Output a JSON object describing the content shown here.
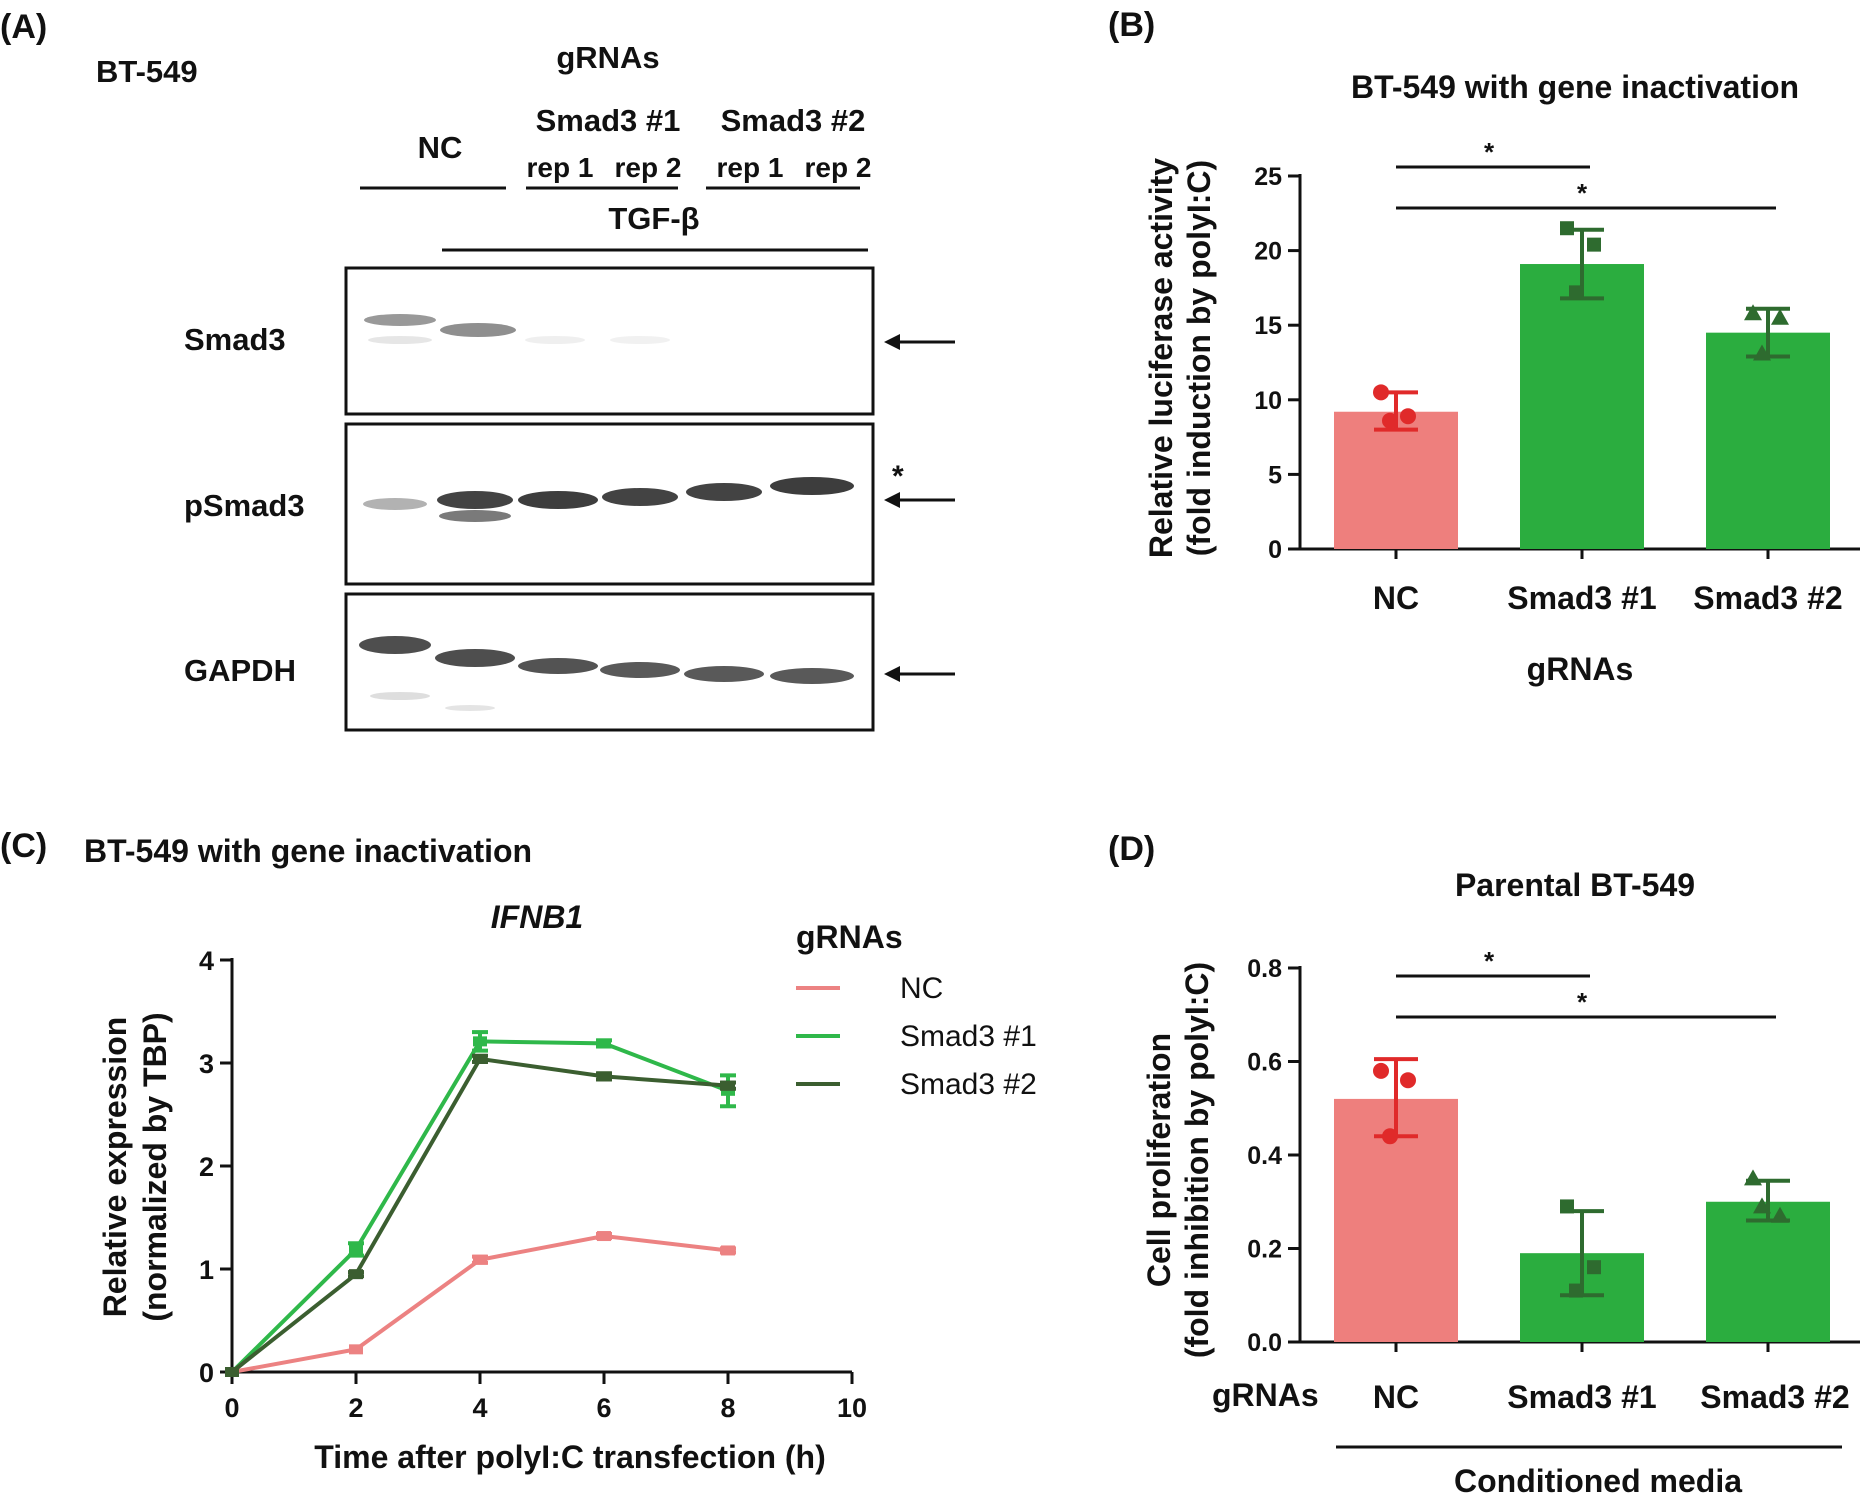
{
  "panels": {
    "A": {
      "label": "(A)",
      "cell_line": "BT-549",
      "grnas_header": "gRNAs",
      "groups": [
        "NC",
        "Smad3 #1",
        "Smad3 #2"
      ],
      "reps": [
        "rep 1",
        "rep 2",
        "rep 1",
        "rep 2"
      ],
      "treatment": "TGF-β",
      "blot_rows": [
        "Smad3",
        "pSmad3",
        "GAPDH"
      ],
      "star": "*"
    },
    "B": {
      "label": "(B)"
    },
    "C": {
      "label": "(C)",
      "title": "BT-549 with gene inactivation"
    },
    "D": {
      "label": "(D)",
      "group_label": "gRNAs",
      "media_label": "Conditioned media"
    }
  },
  "chart_data": [
    {
      "panel": "B",
      "type": "bar",
      "title": "BT-549 with gene inactivation",
      "xlabel": "gRNAs",
      "ylabel": [
        "Relative luciferase activity",
        "(fold induction by polyI:C)"
      ],
      "categories": [
        "NC",
        "Smad3 #1",
        "Smad3 #2"
      ],
      "values": [
        9.2,
        19.1,
        14.5
      ],
      "error": [
        [
          8.0,
          10.5
        ],
        [
          16.8,
          21.4
        ],
        [
          12.9,
          16.1
        ]
      ],
      "points": [
        [
          10.5,
          8.9,
          8.6
        ],
        [
          21.5,
          20.4,
          17.2
        ],
        [
          15.8,
          15.5,
          13.1
        ]
      ],
      "colors": [
        "#ee7f7d",
        "#2bad3f",
        "#2bad3f"
      ],
      "ylim": [
        0,
        25
      ],
      "yticks": [
        "0",
        "5",
        "10",
        "15",
        "20",
        "25"
      ],
      "significance": [
        {
          "from": 0,
          "to": 1,
          "label": "*"
        },
        {
          "from": 0,
          "to": 2,
          "label": "*"
        }
      ]
    },
    {
      "panel": "C",
      "type": "line",
      "title": "IFNB1",
      "xlabel": "Time after polyI:C transfection (h)",
      "ylabel": [
        "Relative expression",
        "(normalized by TBP)"
      ],
      "legend_title": "gRNAs",
      "x": [
        0,
        2,
        4,
        6,
        8
      ],
      "xlim": [
        0,
        10
      ],
      "ylim": [
        0,
        4
      ],
      "xticks": [
        "0",
        "2",
        "4",
        "6",
        "8",
        "10"
      ],
      "yticks": [
        "0",
        "1",
        "2",
        "3",
        "4"
      ],
      "series": [
        {
          "name": "NC",
          "values": [
            0,
            0.22,
            1.09,
            1.32,
            1.18
          ],
          "err": [
            0,
            0,
            0.03,
            0.02,
            0.02
          ],
          "color": "#ec8282"
        },
        {
          "name": "Smad3 #1",
          "values": [
            0,
            1.19,
            3.21,
            3.19,
            2.73
          ],
          "err": [
            0,
            0.06,
            0.09,
            0.03,
            0.15
          ],
          "color": "#2fb84a"
        },
        {
          "name": "Smad3 #2",
          "values": [
            0,
            0.95,
            3.04,
            2.87,
            2.78
          ],
          "err": [
            0,
            0.02,
            0.03,
            0.03,
            0.03
          ],
          "color": "#3b5e30"
        }
      ]
    },
    {
      "panel": "D",
      "type": "bar",
      "title": "Parental BT-549",
      "ylabel": [
        "Cell proliferation",
        "(fold inhibition by polyI:C)"
      ],
      "categories": [
        "NC",
        "Smad3 #1",
        "Smad3 #2"
      ],
      "values": [
        0.52,
        0.19,
        0.3
      ],
      "error": [
        [
          0.44,
          0.605
        ],
        [
          0.1,
          0.28
        ],
        [
          0.26,
          0.345
        ]
      ],
      "points": [
        [
          0.58,
          0.56,
          0.44
        ],
        [
          0.29,
          0.16,
          0.11
        ],
        [
          0.35,
          0.27,
          0.29
        ]
      ],
      "colors": [
        "#ee7f7d",
        "#2bad3f",
        "#2bad3f"
      ],
      "ylim": [
        0,
        0.8
      ],
      "yticks": [
        "0.0",
        "0.2",
        "0.4",
        "0.6",
        "0.8"
      ],
      "significance": [
        {
          "from": 0,
          "to": 1,
          "label": "*"
        },
        {
          "from": 0,
          "to": 2,
          "label": "*"
        }
      ]
    }
  ]
}
